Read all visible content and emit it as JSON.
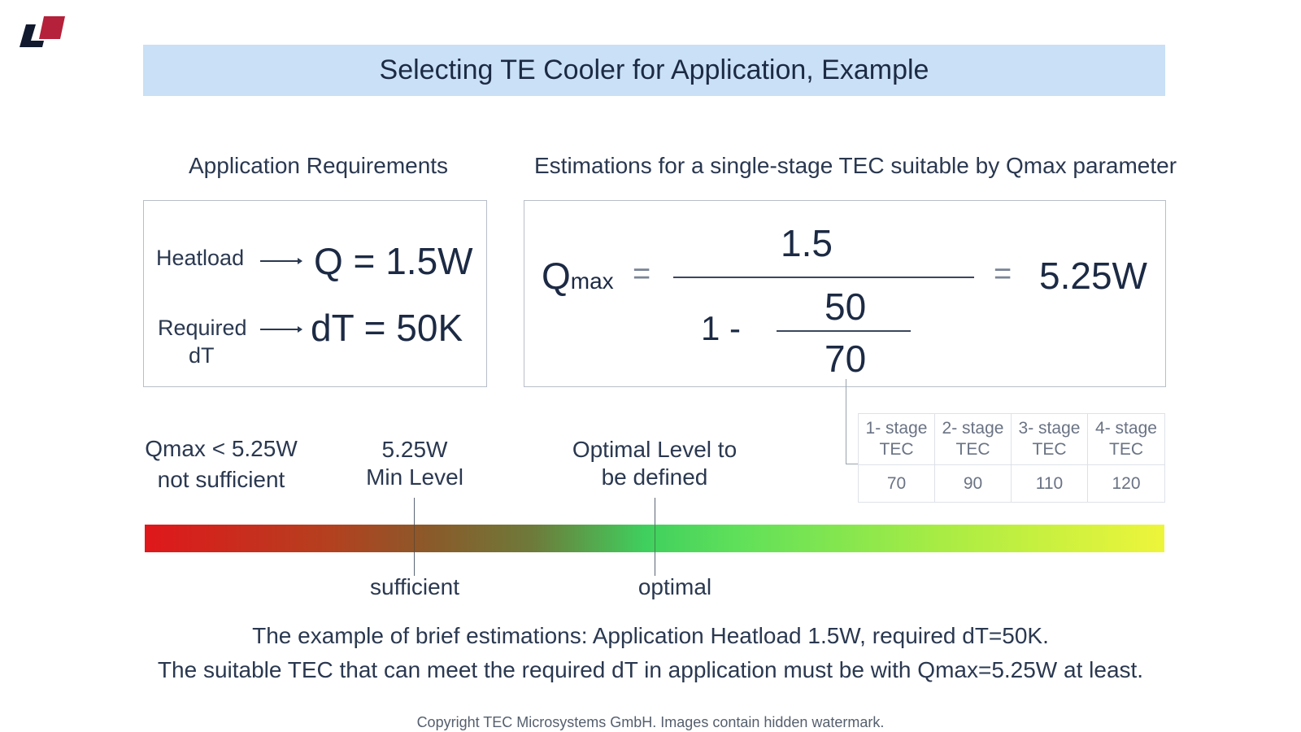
{
  "title": "Selecting TE Cooler for Application, Example",
  "requirements": {
    "heading": "Application Requirements",
    "heatload_label": "Heatload",
    "heatload_value": "Q = 1.5W",
    "dt_label_line1": "Required",
    "dt_label_line2": "dT",
    "dt_value": "dT = 50K"
  },
  "estimation": {
    "heading": "Estimations for a single-stage TEC suitable by Qmax parameter",
    "q_symbol": "Q",
    "q_sub": "max",
    "equals1": "=",
    "numerator": "1.5",
    "denom_prefix": "1 -",
    "inner_numerator": "50",
    "inner_denominator": "70",
    "equals2": "=",
    "result": "5.25W"
  },
  "tec_table": {
    "headers": [
      [
        "1- stage",
        "TEC"
      ],
      [
        "2- stage",
        "TEC"
      ],
      [
        "3- stage",
        "TEC"
      ],
      [
        "4- stage",
        "TEC"
      ]
    ],
    "values": [
      "70",
      "90",
      "110",
      "120"
    ]
  },
  "scale": {
    "insufficient_line1": "Qmax < 5.25W",
    "insufficient_line2": "not sufficient",
    "min_line1": "5.25W",
    "min_line2": "Min Level",
    "optimal_line1": "Optimal Level to",
    "optimal_line2": "be defined",
    "sufficient_label": "sufficient",
    "optimal_label": "optimal",
    "gradient_start_color": "#e0171b",
    "gradient_mid_color": "#3fcf5e",
    "gradient_end_color": "#eef53a"
  },
  "summary": {
    "line1": "The example of brief estimations: Application Heatload 1.5W, required dT=50K.",
    "line2": "The suitable TEC that can meet the required  dT in application must be with Qmax=5.25W at least."
  },
  "footer": "Copyright TEC Microsystems GmbH. Images contain hidden watermark.",
  "logo": {
    "icon": "company-logo",
    "colors": [
      "#111a2e",
      "#b5203a"
    ]
  }
}
